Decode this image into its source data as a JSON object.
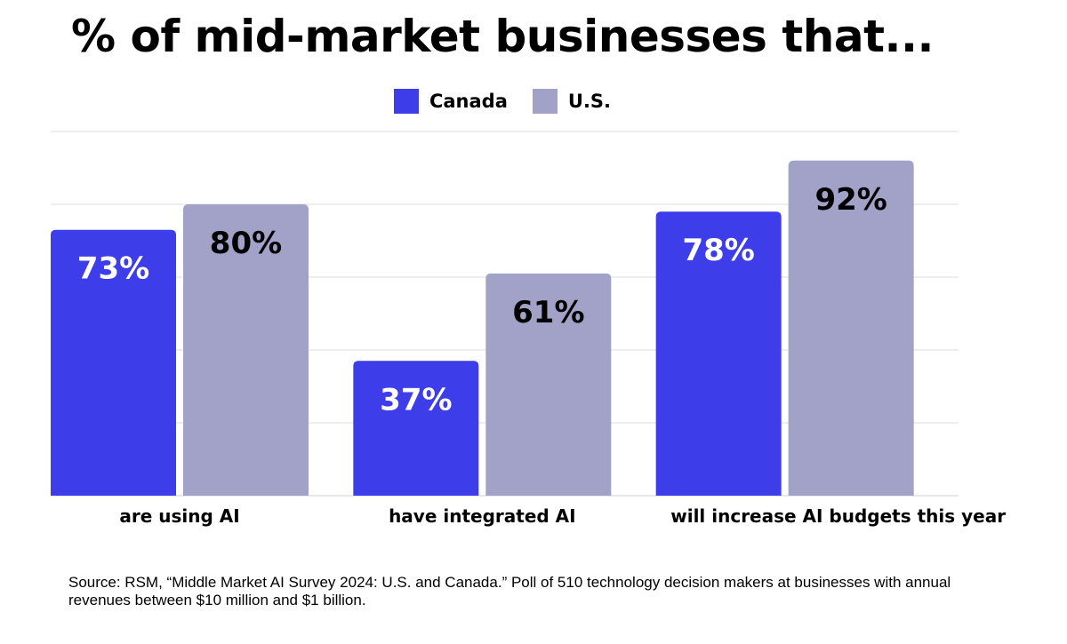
{
  "title": "% of mid-market businesses that...",
  "legend": [
    {
      "label": "Canada",
      "color": "#3d3dea"
    },
    {
      "label": "U.S.",
      "color": "#a2a1c7"
    }
  ],
  "source": "Source: RSM, “Middle Market AI Survey 2024: U.S. and Canada.” Poll of 510 technology decision makers at businesses with annual revenues between $10 million and $1 billion.",
  "chart_data": {
    "type": "bar",
    "title": "% of mid-market businesses that...",
    "categories": [
      "are using AI",
      "have integrated AI",
      "will increase AI budgets this year"
    ],
    "series": [
      {
        "name": "Canada",
        "values": [
          73,
          37,
          78
        ],
        "labels": [
          "73%",
          "37%",
          "78%"
        ],
        "color": "#3d3dea",
        "label_color": "#ffffff"
      },
      {
        "name": "U.S.",
        "values": [
          80,
          61,
          92
        ],
        "labels": [
          "80%",
          "61%",
          "92%"
        ],
        "color": "#a2a1c7",
        "label_color": "#000000"
      }
    ],
    "ylim": [
      0,
      100
    ],
    "grid": true,
    "legend_position": "top-center",
    "xlabel": "",
    "ylabel": ""
  }
}
